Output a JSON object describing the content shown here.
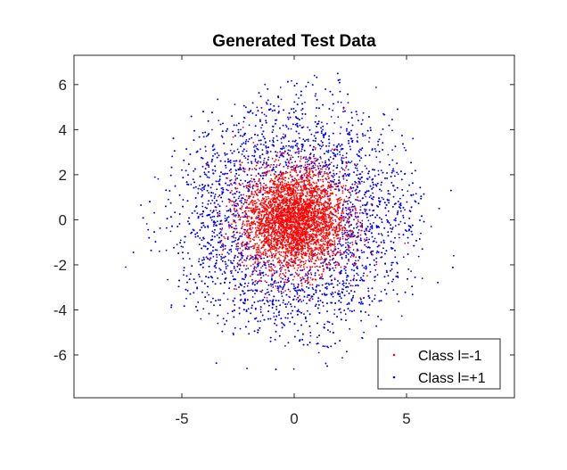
{
  "chart_data": {
    "type": "scatter",
    "title": "Generated Test Data",
    "xlabel": "",
    "ylabel": "",
    "xlim": [
      -9.8,
      9.8
    ],
    "ylim": [
      -7.9,
      7.3
    ],
    "xticks": [
      -5,
      0,
      5
    ],
    "xtick_labels": [
      "-5",
      "0",
      "5"
    ],
    "yticks": [
      -6,
      -4,
      -2,
      0,
      2,
      4,
      6
    ],
    "ytick_labels": [
      "-6",
      "-4",
      "-2",
      "0",
      "2",
      "4",
      "6"
    ],
    "grid": false,
    "legend_position": "bottom-right",
    "series": [
      {
        "name": "Class l=-1",
        "color": "#ff0000",
        "marker": "dot",
        "distribution": "isotropic gaussian cloud centered near (0, 0), mostly within radius ~3",
        "points": [
          [
            0.2,
            0.1
          ],
          [
            -0.5,
            0.8
          ],
          [
            1.1,
            -0.4
          ],
          [
            -1.2,
            -0.9
          ],
          [
            0.6,
            1.7
          ],
          [
            -1.8,
            0.5
          ],
          [
            2.1,
            0.9
          ],
          [
            -0.3,
            -2.1
          ],
          [
            1.5,
            1.4
          ],
          [
            -2.2,
            -1.1
          ],
          [
            0.9,
            -1.6
          ],
          [
            -1.0,
            2.2
          ],
          [
            2.5,
            -0.7
          ],
          [
            -0.7,
            -0.3
          ],
          [
            0.3,
            2.8
          ],
          [
            -2.6,
            1.6
          ],
          [
            1.9,
            -2.0
          ],
          [
            -1.5,
            -2.4
          ],
          [
            0.0,
            -0.9
          ],
          [
            2.8,
            0.3
          ],
          [
            -2.9,
            -0.2
          ],
          [
            0.7,
            0.4
          ],
          [
            -0.2,
            1.3
          ],
          [
            1.3,
            2.4
          ],
          [
            -1.7,
            -1.6
          ],
          [
            2.2,
            1.9
          ],
          [
            -0.9,
            -1.3
          ],
          [
            0.5,
            -2.7
          ],
          [
            -2.4,
            2.3
          ],
          [
            1.6,
            -1.1
          ]
        ]
      },
      {
        "name": "Class l=+1",
        "color": "#0000ff",
        "marker": "dot",
        "distribution": "ring-shaped cloud around the origin, radius roughly 2.5 to 6.5",
        "points": [
          [
            3.5,
            0.4
          ],
          [
            -3.8,
            1.2
          ],
          [
            0.6,
            4.1
          ],
          [
            -0.9,
            -4.3
          ],
          [
            2.9,
            3.0
          ],
          [
            -3.1,
            -2.8
          ],
          [
            4.4,
            -1.9
          ],
          [
            -4.6,
            -0.6
          ],
          [
            1.8,
            -4.0
          ],
          [
            -2.0,
            4.2
          ],
          [
            5.2,
            1.1
          ],
          [
            -5.0,
            2.2
          ],
          [
            0.2,
            5.4
          ],
          [
            -0.4,
            -5.6
          ],
          [
            3.8,
            -3.6
          ],
          [
            -3.9,
            3.7
          ],
          [
            6.1,
            -0.3
          ],
          [
            -6.0,
            -1.4
          ],
          [
            2.4,
            5.2
          ],
          [
            -2.7,
            -5.1
          ],
          [
            4.9,
            3.2
          ],
          [
            -4.8,
            -3.5
          ],
          [
            1.1,
            -5.9
          ],
          [
            -1.3,
            6.0
          ],
          [
            3.1,
            -5.0
          ],
          [
            -5.6,
            0.9
          ],
          [
            5.7,
            -2.6
          ],
          [
            -3.4,
            -4.6
          ],
          [
            0.9,
            6.4
          ],
          [
            -7.5,
            -2.1
          ],
          [
            7.1,
            -1.6
          ],
          [
            -2.1,
            -6.6
          ]
        ]
      }
    ]
  }
}
